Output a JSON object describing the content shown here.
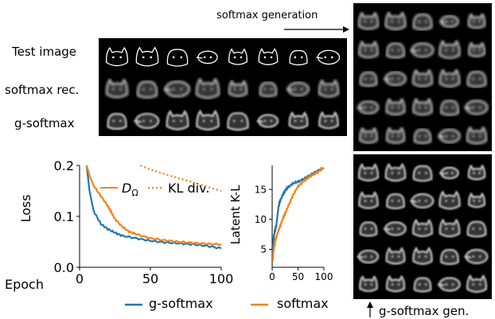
{
  "figure": {
    "row_labels": [
      "Test image",
      "softmax rec.",
      "g-softmax"
    ],
    "softmax_generation_label": "softmax generation",
    "gsoftmax_generation_label": "g-softmax gen."
  },
  "chart_data": [
    {
      "type": "line",
      "xlabel": "Epoch",
      "ylabel": "Loss",
      "xlim": [
        0,
        100
      ],
      "ylim": [
        0.0,
        0.2
      ],
      "xticks": [
        0,
        50,
        100
      ],
      "yticks": [
        0.0,
        0.1,
        0.2
      ],
      "ytick_labels": [
        "0.0",
        "0.1",
        "0.2"
      ],
      "legend": {
        "placement": "top-right",
        "entries": [
          {
            "label_main": "D",
            "label_sub": "Ω",
            "style": "solid"
          },
          {
            "label_main": "KL div.",
            "label_sub": "",
            "style": "dotted"
          }
        ]
      },
      "series": [
        {
          "name": "g-softmax",
          "color": "#1f77b4",
          "style": "solid",
          "x": [
            5,
            7,
            10,
            15,
            20,
            25,
            30,
            40,
            50,
            60,
            70,
            80,
            90,
            100
          ],
          "y": [
            0.2,
            0.15,
            0.11,
            0.085,
            0.075,
            0.068,
            0.062,
            0.057,
            0.052,
            0.049,
            0.047,
            0.045,
            0.042,
            0.037
          ]
        },
        {
          "name": "softmax",
          "color": "#ff7f0e",
          "style": "solid",
          "x": [
            5,
            7,
            10,
            15,
            20,
            22,
            25,
            30,
            35,
            40,
            50,
            60,
            70,
            80,
            90,
            100
          ],
          "y": [
            0.2,
            0.18,
            0.16,
            0.14,
            0.12,
            0.11,
            0.095,
            0.08,
            0.07,
            0.065,
            0.057,
            0.053,
            0.05,
            0.048,
            0.046,
            0.045
          ]
        },
        {
          "name": "softmax",
          "color": "#ff7f0e",
          "style": "dotted",
          "x": [
            43,
            50,
            60,
            70,
            80,
            90,
            100
          ],
          "y": [
            0.2,
            0.192,
            0.183,
            0.175,
            0.167,
            0.158,
            0.15
          ]
        }
      ]
    },
    {
      "type": "line",
      "xlabel": "",
      "ylabel": "Latent K-L",
      "xlim": [
        0,
        100
      ],
      "ylim": [
        2,
        19
      ],
      "xticks": [
        0,
        50,
        100
      ],
      "yticks": [
        5,
        10,
        15
      ],
      "series": [
        {
          "name": "g-softmax",
          "color": "#1f77b4",
          "style": "solid",
          "x": [
            1,
            2,
            3,
            5,
            8,
            10,
            12,
            15,
            20,
            25,
            30,
            40,
            50,
            60,
            70,
            80,
            90,
            100
          ],
          "y": [
            4,
            6,
            7,
            8,
            9,
            10.5,
            12,
            13,
            14,
            14.8,
            15.3,
            16,
            16.3,
            16.7,
            17.2,
            17.7,
            18.2,
            18.6
          ]
        },
        {
          "name": "softmax",
          "color": "#ff7f0e",
          "style": "solid",
          "x": [
            1,
            2,
            3,
            5,
            8,
            10,
            15,
            20,
            25,
            30,
            40,
            50,
            60,
            70,
            80,
            90,
            100
          ],
          "y": [
            3,
            4,
            5,
            6,
            7,
            7.6,
            8.8,
            10,
            11,
            12,
            14,
            15.5,
            16.3,
            17,
            17.5,
            18,
            18.6
          ]
        }
      ]
    }
  ],
  "bottom_legend": [
    {
      "label": "g-softmax",
      "color": "#1f77b4"
    },
    {
      "label": "softmax",
      "color": "#ff7f0e"
    }
  ]
}
